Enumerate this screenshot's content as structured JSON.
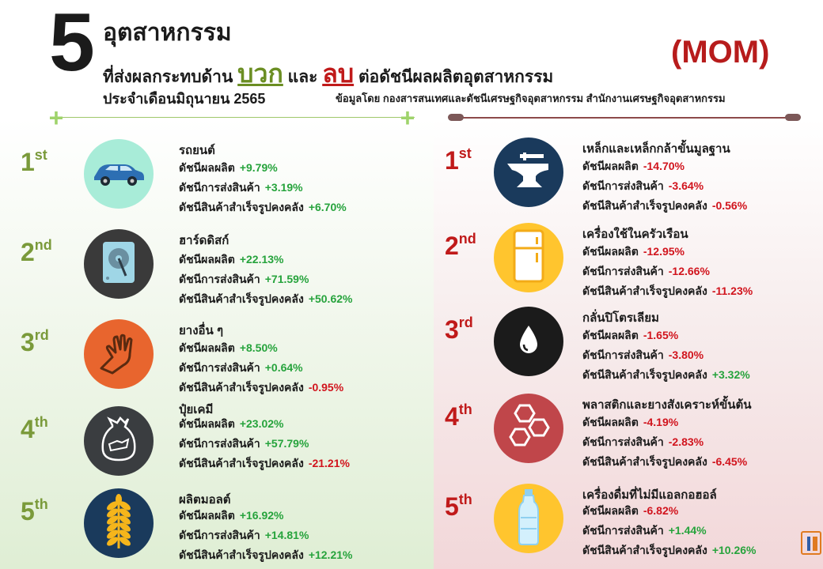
{
  "header": {
    "big_number": "5",
    "line1": "อุตสาหกรรม",
    "line2_prefix": "ที่ส่งผลกระทบด้าน",
    "positive_word": "บวก",
    "and_word": "และ",
    "negative_word": "ลบ",
    "line2_suffix": "ต่อดัชนีผลผลิตอุตสาหกรรม",
    "line3": "ประจำเดือนมิถุนายน 2565",
    "mom": "(MOM)",
    "source": "ข้อมูลโดย กองสารสนเทศและดัชนีเศรษฐกิจอุตสาหกรรม สำนักงานเศรษฐกิจอุตสาหกรรม"
  },
  "labels": {
    "production": "ดัชนีผลผลิต",
    "shipment": "ดัชนีการส่งสินค้า",
    "inventory": "ดัชนีสินค้าสำเร็จรูปคงคลัง"
  },
  "positive": [
    {
      "rank": "1",
      "suffix": "st",
      "name": "รถยนต์",
      "production": "+9.79%",
      "shipment": "+3.19%",
      "inventory": "+6.70%",
      "icon": "car-icon",
      "color": "#a8ecd8"
    },
    {
      "rank": "2",
      "suffix": "nd",
      "name": "ฮาร์ดดิสก์",
      "production": "+22.13%",
      "shipment": "+71.59%",
      "inventory": "+50.62%",
      "icon": "hard-disk-icon",
      "color": "#3a3a3a"
    },
    {
      "rank": "3",
      "suffix": "rd",
      "name": "ยางอื่น ๆ",
      "production": "+8.50%",
      "shipment": "+0.64%",
      "inventory": "-0.95%",
      "icon": "rubber-glove-icon",
      "color": "#e8652e"
    },
    {
      "rank": "4",
      "suffix": "th",
      "name": "ปุ๋ยเคมี",
      "production": "+23.02%",
      "shipment": "+57.79%",
      "inventory": "-21.21%",
      "icon": "fertilizer-sack-icon",
      "color": "#3a3d40"
    },
    {
      "rank": "5",
      "suffix": "th",
      "name": "ผลิตมอลต์",
      "production": "+16.92%",
      "shipment": "+14.81%",
      "inventory": "+12.21%",
      "icon": "wheat-icon",
      "color": "#1a3a5c"
    }
  ],
  "negative": [
    {
      "rank": "1",
      "suffix": "st",
      "name": "เหล็กและเหล็กกล้าขั้นมูลฐาน",
      "production": "-14.70%",
      "shipment": "-3.64%",
      "inventory": "-0.56%",
      "icon": "anvil-icon",
      "color": "#1a3a5c"
    },
    {
      "rank": "2",
      "suffix": "nd",
      "name": "เครื่องใช้ในครัวเรือน",
      "production": "-12.95%",
      "shipment": "-12.66%",
      "inventory": "-11.23%",
      "icon": "refrigerator-icon",
      "color": "#ffc52e"
    },
    {
      "rank": "3",
      "suffix": "rd",
      "name": "กลั่นปิโตรเลียม",
      "production": "-1.65%",
      "shipment": "-3.80%",
      "inventory": "+3.32%",
      "icon": "oil-drop-icon",
      "color": "#1b1b1b"
    },
    {
      "rank": "4",
      "suffix": "th",
      "name": "พลาสติกและยางสังเคราะห์ขั้นต้น",
      "production": "-4.19%",
      "shipment": "-2.83%",
      "inventory": "-6.45%",
      "icon": "hexagon-molecule-icon",
      "color": "#c0464a"
    },
    {
      "rank": "5",
      "suffix": "th",
      "name": "เครื่องดื่มที่ไม่มีแอลกอฮอล์",
      "production": "-6.82%",
      "shipment": "+1.44%",
      "inventory": "+10.26%",
      "icon": "water-bottle-icon",
      "color": "#ffc52e"
    }
  ]
}
